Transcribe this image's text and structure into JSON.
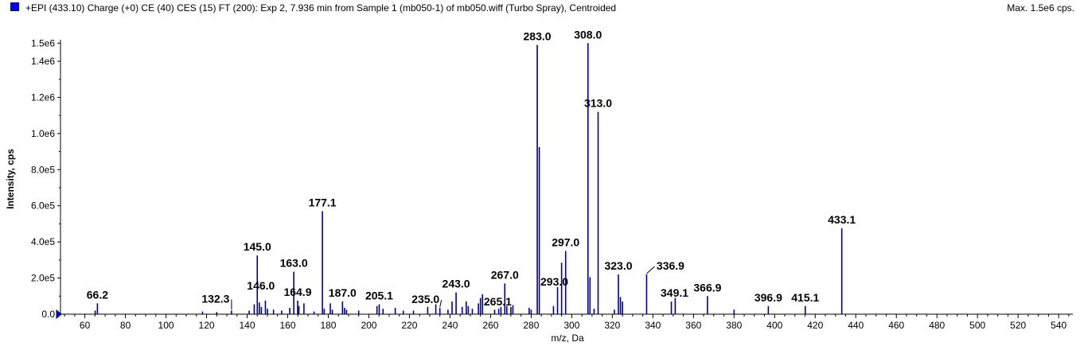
{
  "header": {
    "title": "+EPI (433.10) Charge (+0) CE (40) CES (15) FT (200): Exp 2, 7.936 min from Sample 1 (mb050-1) of mb050.wiff (Turbo Spray), Centroided",
    "max_label": "Max. 1.5e6 cps."
  },
  "colors": {
    "stick": "#00008b",
    "legend": "#0000ff",
    "axis": "#000000"
  },
  "chart_data": {
    "type": "bar",
    "title": "+EPI (433.10) Charge (+0) CE (40) CES (15) FT (200): Exp 2, 7.936 min from Sample 1 (mb050-1) of mb050.wiff (Turbo Spray), Centroided",
    "xlabel": "m/z, Da",
    "ylabel": "Intensity, cps",
    "xlim": [
      48,
      547
    ],
    "ylim": [
      0,
      1510000
    ],
    "xticks": [
      60,
      80,
      100,
      120,
      140,
      160,
      180,
      200,
      220,
      240,
      260,
      280,
      300,
      320,
      340,
      360,
      380,
      400,
      420,
      440,
      460,
      480,
      500,
      520,
      540
    ],
    "xtick_labels": [
      "60",
      "80",
      "100",
      "120",
      "140",
      "160",
      "180",
      "200",
      "220",
      "240",
      "260",
      "280",
      "300",
      "320",
      "340",
      "360",
      "380",
      "400",
      "420",
      "440",
      "460",
      "480",
      "500",
      "520",
      "540"
    ],
    "yticks": [
      0,
      200000,
      400000,
      600000,
      800000,
      1000000,
      1200000,
      1400000,
      1500000
    ],
    "ytick_labels": [
      "0.0",
      "2.0e5",
      "4.0e5",
      "6.0e5",
      "8.0e5",
      "1.0e6",
      "1.2e6",
      "1.4e6",
      "1.5e6"
    ],
    "grid": false,
    "peaks": [
      {
        "mz": 65.1,
        "intensity": 20000
      },
      {
        "mz": 66.2,
        "intensity": 60000
      },
      {
        "mz": 118.0,
        "intensity": 15000
      },
      {
        "mz": 125.0,
        "intensity": 12000
      },
      {
        "mz": 132.3,
        "intensity": 20000
      },
      {
        "mz": 141.0,
        "intensity": 20000
      },
      {
        "mz": 143.5,
        "intensity": 55000
      },
      {
        "mz": 145.0,
        "intensity": 325000
      },
      {
        "mz": 146.0,
        "intensity": 65000
      },
      {
        "mz": 147.0,
        "intensity": 40000
      },
      {
        "mz": 149.0,
        "intensity": 75000
      },
      {
        "mz": 150.0,
        "intensity": 30000
      },
      {
        "mz": 153.0,
        "intensity": 25000
      },
      {
        "mz": 157.0,
        "intensity": 20000
      },
      {
        "mz": 161.0,
        "intensity": 35000
      },
      {
        "mz": 163.0,
        "intensity": 235000
      },
      {
        "mz": 164.9,
        "intensity": 75000
      },
      {
        "mz": 165.5,
        "intensity": 45000
      },
      {
        "mz": 168.0,
        "intensity": 60000
      },
      {
        "mz": 173.0,
        "intensity": 15000
      },
      {
        "mz": 177.1,
        "intensity": 570000
      },
      {
        "mz": 178.0,
        "intensity": 30000
      },
      {
        "mz": 181.0,
        "intensity": 60000
      },
      {
        "mz": 182.0,
        "intensity": 25000
      },
      {
        "mz": 187.0,
        "intensity": 70000
      },
      {
        "mz": 188.0,
        "intensity": 35000
      },
      {
        "mz": 189.0,
        "intensity": 25000
      },
      {
        "mz": 195.0,
        "intensity": 20000
      },
      {
        "mz": 204.0,
        "intensity": 45000
      },
      {
        "mz": 205.1,
        "intensity": 55000
      },
      {
        "mz": 207.0,
        "intensity": 30000
      },
      {
        "mz": 213.0,
        "intensity": 35000
      },
      {
        "mz": 217.0,
        "intensity": 20000
      },
      {
        "mz": 222.0,
        "intensity": 20000
      },
      {
        "mz": 229.0,
        "intensity": 40000
      },
      {
        "mz": 233.0,
        "intensity": 55000
      },
      {
        "mz": 235.0,
        "intensity": 35000
      },
      {
        "mz": 239.0,
        "intensity": 25000
      },
      {
        "mz": 241.0,
        "intensity": 70000
      },
      {
        "mz": 243.0,
        "intensity": 120000
      },
      {
        "mz": 246.0,
        "intensity": 40000
      },
      {
        "mz": 248.0,
        "intensity": 70000
      },
      {
        "mz": 249.0,
        "intensity": 45000
      },
      {
        "mz": 251.0,
        "intensity": 30000
      },
      {
        "mz": 254.0,
        "intensity": 60000
      },
      {
        "mz": 255.0,
        "intensity": 90000
      },
      {
        "mz": 256.0,
        "intensity": 110000
      },
      {
        "mz": 262.0,
        "intensity": 25000
      },
      {
        "mz": 264.0,
        "intensity": 30000
      },
      {
        "mz": 265.1,
        "intensity": 40000
      },
      {
        "mz": 267.0,
        "intensity": 170000
      },
      {
        "mz": 268.0,
        "intensity": 45000
      },
      {
        "mz": 270.0,
        "intensity": 40000
      },
      {
        "mz": 271.0,
        "intensity": 50000
      },
      {
        "mz": 279.0,
        "intensity": 35000
      },
      {
        "mz": 280.0,
        "intensity": 25000
      },
      {
        "mz": 283.0,
        "intensity": 1490000
      },
      {
        "mz": 284.0,
        "intensity": 925000
      },
      {
        "mz": 291.0,
        "intensity": 45000
      },
      {
        "mz": 293.0,
        "intensity": 150000
      },
      {
        "mz": 295.0,
        "intensity": 285000
      },
      {
        "mz": 297.0,
        "intensity": 350000
      },
      {
        "mz": 308.0,
        "intensity": 1500000
      },
      {
        "mz": 309.0,
        "intensity": 205000
      },
      {
        "mz": 311.0,
        "intensity": 30000
      },
      {
        "mz": 313.0,
        "intensity": 1120000
      },
      {
        "mz": 321.0,
        "intensity": 25000
      },
      {
        "mz": 323.0,
        "intensity": 220000
      },
      {
        "mz": 324.0,
        "intensity": 95000
      },
      {
        "mz": 325.0,
        "intensity": 70000
      },
      {
        "mz": 336.9,
        "intensity": 220000
      },
      {
        "mz": 349.1,
        "intensity": 70000
      },
      {
        "mz": 351.0,
        "intensity": 90000
      },
      {
        "mz": 366.9,
        "intensity": 100000
      },
      {
        "mz": 380.0,
        "intensity": 25000
      },
      {
        "mz": 396.9,
        "intensity": 45000
      },
      {
        "mz": 415.1,
        "intensity": 45000
      },
      {
        "mz": 433.1,
        "intensity": 475000
      }
    ],
    "annotations": [
      {
        "text": "66.2",
        "mz": 66.2,
        "intensity": 60000
      },
      {
        "text": "132.3",
        "mz": 132.3,
        "intensity": 20000
      },
      {
        "text": "145.0",
        "mz": 145.0,
        "intensity": 325000
      },
      {
        "text": "146.0",
        "mz": 146.0,
        "intensity": 65000
      },
      {
        "text": "163.0",
        "mz": 163.0,
        "intensity": 235000
      },
      {
        "text": "164.9",
        "mz": 164.9,
        "intensity": 75000
      },
      {
        "text": "177.1",
        "mz": 177.1,
        "intensity": 570000
      },
      {
        "text": "187.0",
        "mz": 187.0,
        "intensity": 70000
      },
      {
        "text": "205.1",
        "mz": 205.1,
        "intensity": 55000
      },
      {
        "text": "235.0",
        "mz": 235.0,
        "intensity": 35000
      },
      {
        "text": "243.0",
        "mz": 243.0,
        "intensity": 120000
      },
      {
        "text": "265.1",
        "mz": 265.1,
        "intensity": 40000
      },
      {
        "text": "267.0",
        "mz": 267.0,
        "intensity": 170000
      },
      {
        "text": "283.0",
        "mz": 283.0,
        "intensity": 1490000
      },
      {
        "text": "293.0",
        "mz": 293.0,
        "intensity": 150000
      },
      {
        "text": "297.0",
        "mz": 297.0,
        "intensity": 350000
      },
      {
        "text": "308.0",
        "mz": 308.0,
        "intensity": 1500000
      },
      {
        "text": "313.0",
        "mz": 313.0,
        "intensity": 1120000
      },
      {
        "text": "323.0",
        "mz": 323.0,
        "intensity": 220000
      },
      {
        "text": "336.9",
        "mz": 336.9,
        "intensity": 220000
      },
      {
        "text": "349.1",
        "mz": 349.1,
        "intensity": 70000
      },
      {
        "text": "366.9",
        "mz": 366.9,
        "intensity": 100000
      },
      {
        "text": "396.9",
        "mz": 396.9,
        "intensity": 45000
      },
      {
        "text": "415.1",
        "mz": 415.1,
        "intensity": 45000
      },
      {
        "text": "433.1",
        "mz": 433.1,
        "intensity": 475000
      }
    ]
  }
}
